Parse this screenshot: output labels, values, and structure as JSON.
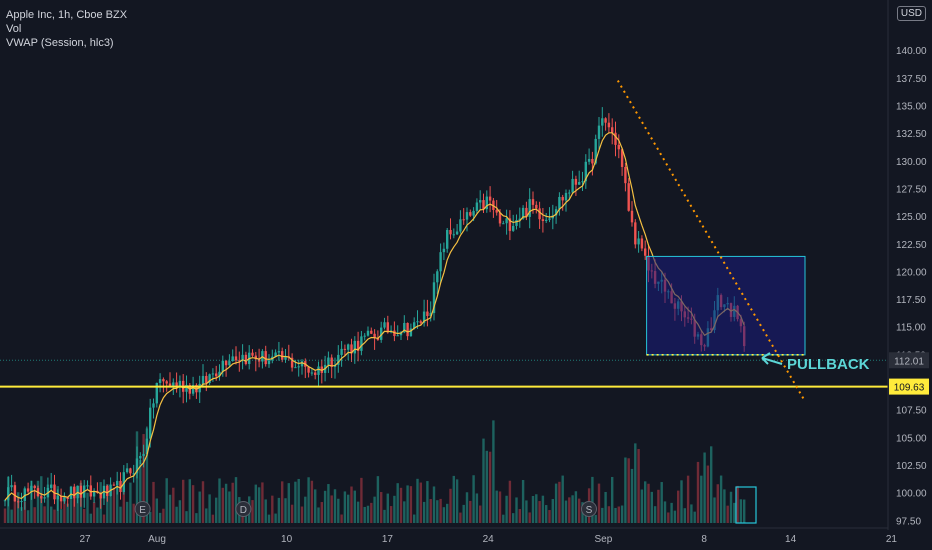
{
  "header": {
    "title": "Apple Inc, 1h, Cboe BZX",
    "indicator_vol": "Vol",
    "indicator_vwap": "VWAP (Session, hlc3)",
    "currency_button": "USD"
  },
  "chart_data": {
    "type": "candlestick",
    "title": "Apple Inc, 1h, Cboe BZX",
    "xlabel": "",
    "ylabel": "",
    "ylim": [
      97.5,
      142.5
    ],
    "y_ticks": [
      97.5,
      100,
      102.5,
      105,
      107.5,
      110,
      112.5,
      115,
      117.5,
      120,
      122.5,
      125,
      127.5,
      130,
      132.5,
      135,
      137.5,
      140
    ],
    "x_ticks": [
      "27",
      "Aug",
      "10",
      "17",
      "24",
      "Sep",
      "8",
      "14",
      "21"
    ],
    "grid": false,
    "price_path": [
      {
        "date": "Jul 29",
        "price": 100.0
      },
      {
        "date": "Jul 31",
        "price": 103.5
      },
      {
        "date": "Aug 1",
        "price": 110.0
      },
      {
        "date": "Aug 4",
        "price": 109.6
      },
      {
        "date": "Aug 6",
        "price": 112.5
      },
      {
        "date": "Aug 10",
        "price": 112.0
      },
      {
        "date": "Aug 12",
        "price": 111.0
      },
      {
        "date": "Aug 14",
        "price": 113.0
      },
      {
        "date": "Aug 17",
        "price": 114.8
      },
      {
        "date": "Aug 19",
        "price": 115.0
      },
      {
        "date": "Aug 20",
        "price": 117.0
      },
      {
        "date": "Aug 21",
        "price": 123.0
      },
      {
        "date": "Aug 24",
        "price": 126.5
      },
      {
        "date": "Aug 25",
        "price": 124.0
      },
      {
        "date": "Aug 27",
        "price": 126.0
      },
      {
        "date": "Aug 28",
        "price": 125.0
      },
      {
        "date": "Aug 31",
        "price": 129.5
      },
      {
        "date": "Sep 1",
        "price": 134.0
      },
      {
        "date": "Sep 2",
        "price": 131.5
      },
      {
        "date": "Sep 3",
        "price": 124.0
      },
      {
        "date": "Sep 4",
        "price": 120.5
      },
      {
        "date": "Sep 8",
        "price": 113.5
      },
      {
        "date": "Sep 9",
        "price": 117.5
      },
      {
        "date": "Sep 10",
        "price": 116.5
      },
      {
        "date": "Sep 11",
        "price": 113.0
      },
      {
        "date": "Sep 12",
        "price": 110.5
      },
      {
        "date": "Sep 14",
        "price": 112.0
      }
    ],
    "volume_spikes": [
      {
        "date": "Jul 31",
        "rel": 0.85
      },
      {
        "date": "Aug 24",
        "rel": 0.95
      },
      {
        "date": "Sep 3",
        "rel": 0.7
      },
      {
        "date": "Sep 8",
        "rel": 0.65
      }
    ],
    "event_markers": [
      {
        "date": "Jul 31",
        "label": "E"
      },
      {
        "date": "Aug 7",
        "label": "D"
      },
      {
        "date": "Aug 31",
        "label": "S"
      }
    ],
    "annotations": {
      "support_price": 109.63,
      "support_label": "109.63",
      "current_price": 112.01,
      "current_price_label": "112.01",
      "pullback_label": "PULLBACK",
      "consolidation_box": {
        "date_start": "Sep 4",
        "date_end": "Sep 15",
        "price_low": 112.5,
        "price_high": 121.4
      },
      "trendline": {
        "start": {
          "date": "Sep 2",
          "price": 137.3
        },
        "end": {
          "date": "Sep 15",
          "price": 108.3
        }
      }
    },
    "colors": {
      "up": "#26a69a",
      "down": "#ef5350",
      "vwap": "#f5c042",
      "support": "#ffeb3b",
      "box_fill": "#1a1c7e",
      "box_border": "#26c6da",
      "trendline": "#ff9800",
      "pullback_text": "#5cd6d6",
      "background": "#131722"
    }
  }
}
